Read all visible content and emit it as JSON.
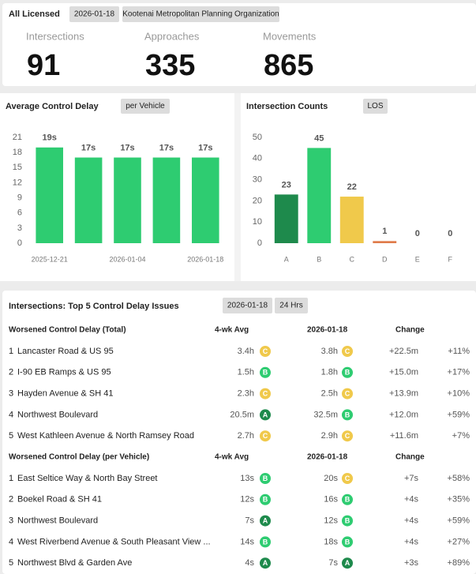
{
  "header": {
    "title": "All Licensed",
    "date": "2026-01-18",
    "organization": "Kootenai Metropolitan Planning Organization"
  },
  "stats": [
    {
      "label": "Intersections",
      "value": 91
    },
    {
      "label": "Approaches",
      "value": 335
    },
    {
      "label": "Movements",
      "value": 865
    }
  ],
  "chart_data": [
    {
      "type": "bar",
      "title": "Average Control Delay",
      "button": "per Vehicle",
      "categories": [
        "2025-12-21",
        null,
        "2026-01-04",
        null,
        "2026-01-18"
      ],
      "values": [
        19,
        17,
        17,
        17,
        17
      ],
      "value_labels": [
        "19s",
        "17s",
        "17s",
        "17s",
        "17s"
      ],
      "color": "#2ecc71",
      "ylim": [
        0,
        21
      ],
      "yticks": [
        0,
        3,
        6,
        9,
        12,
        15,
        18,
        21
      ]
    },
    {
      "type": "bar",
      "title": "Intersection Counts",
      "button": "LOS",
      "categories": [
        "A",
        "B",
        "C",
        "D",
        "E",
        "F"
      ],
      "values": [
        23,
        45,
        22,
        1,
        0,
        0
      ],
      "colors": [
        "#1e8a4c",
        "#2ecc71",
        "#f0c94b",
        "#e07b4a",
        "#bbbbbb",
        "#bbbbbb"
      ],
      "ylim": [
        0,
        50
      ],
      "yticks": [
        0,
        10,
        20,
        30,
        40,
        50
      ]
    }
  ],
  "table": {
    "title": "Intersections: Top 5 Control Delay Issues",
    "date": "2026-01-18",
    "period": "24 Hrs",
    "grade_colors": {
      "A": "#1e8a4c",
      "B": "#2ecc71",
      "C": "#f0c94b"
    },
    "sections": [
      {
        "columns": [
          "Worsened Control Delay (Total)",
          "4-wk Avg",
          "2026-01-18",
          "Change"
        ],
        "rows": [
          [
            1,
            "Lancaster Road & US 95",
            "3.4h",
            "C",
            "3.8h",
            "C",
            "+22.5m",
            "+11%"
          ],
          [
            2,
            "I-90 EB Ramps & US 95",
            "1.5h",
            "B",
            "1.8h",
            "B",
            "+15.0m",
            "+17%"
          ],
          [
            3,
            "Hayden Avenue & SH 41",
            "2.3h",
            "C",
            "2.5h",
            "C",
            "+13.9m",
            "+10%"
          ],
          [
            4,
            "Northwest Boulevard",
            "20.5m",
            "A",
            "32.5m",
            "B",
            "+12.0m",
            "+59%"
          ],
          [
            5,
            "West Kathleen Avenue & North Ramsey Road",
            "2.7h",
            "C",
            "2.9h",
            "C",
            "+11.6m",
            "+7%"
          ]
        ]
      },
      {
        "columns": [
          "Worsened Control Delay (per Vehicle)",
          "4-wk Avg",
          "2026-01-18",
          "Change"
        ],
        "rows": [
          [
            1,
            "East Seltice Way & North Bay Street",
            "13s",
            "B",
            "20s",
            "C",
            "+7s",
            "+58%"
          ],
          [
            2,
            "Boekel Road & SH 41",
            "12s",
            "B",
            "16s",
            "B",
            "+4s",
            "+35%"
          ],
          [
            3,
            "Northwest Boulevard",
            "7s",
            "A",
            "12s",
            "B",
            "+4s",
            "+59%"
          ],
          [
            4,
            "West Riverbend Avenue & South Pleasant View ...",
            "14s",
            "B",
            "18s",
            "B",
            "+4s",
            "+27%"
          ],
          [
            5,
            "Northwest Blvd & Garden Ave",
            "4s",
            "A",
            "7s",
            "A",
            "+3s",
            "+89%"
          ]
        ]
      }
    ]
  }
}
